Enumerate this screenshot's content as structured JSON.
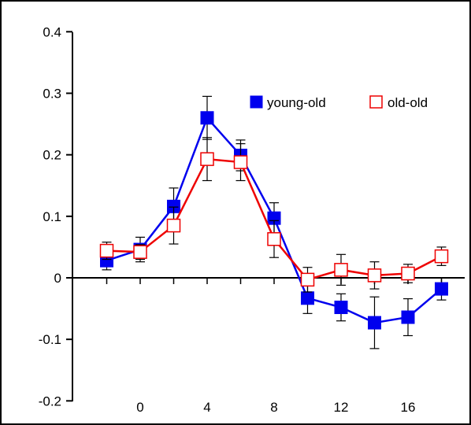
{
  "chart_data": {
    "type": "line",
    "title": "",
    "xlabel": "",
    "ylabel": "",
    "xlim": [
      -4,
      19
    ],
    "ylim": [
      -0.2,
      0.4
    ],
    "x_ticks": [
      {
        "value": 0,
        "label": "0"
      },
      {
        "value": 4,
        "label": "4"
      },
      {
        "value": 8,
        "label": "8"
      },
      {
        "value": 12,
        "label": "12"
      },
      {
        "value": 16,
        "label": "16"
      }
    ],
    "y_ticks": [
      {
        "value": 0.4,
        "label": "0.4"
      },
      {
        "value": 0.3,
        "label": "0.3"
      },
      {
        "value": 0.2,
        "label": "0.2"
      },
      {
        "value": 0.1,
        "label": "0.1"
      },
      {
        "value": 0.0,
        "label": "0"
      },
      {
        "value": -0.1,
        "label": "-0.1"
      },
      {
        "value": -0.2,
        "label": "-0.2"
      }
    ],
    "grid": false,
    "legend_position": "top-right",
    "series": [
      {
        "name": "young-old",
        "color": "#0000ee",
        "marker": "filled-square",
        "x": [
          -2,
          0,
          2,
          4,
          6,
          8,
          10,
          12,
          14,
          16,
          18
        ],
        "y": [
          0.028,
          0.046,
          0.116,
          0.26,
          0.199,
          0.097,
          -0.033,
          -0.048,
          -0.073,
          -0.064,
          -0.018
        ],
        "err": [
          0.015,
          0.02,
          0.03,
          0.035,
          0.025,
          0.025,
          0.025,
          0.022,
          0.042,
          0.03,
          0.018
        ]
      },
      {
        "name": "old-old",
        "color": "#ee0000",
        "marker": "open-square",
        "x": [
          -2,
          0,
          2,
          4,
          6,
          8,
          10,
          12,
          14,
          16,
          18
        ],
        "y": [
          0.044,
          0.042,
          0.085,
          0.193,
          0.188,
          0.063,
          -0.003,
          0.013,
          0.004,
          0.007,
          0.035
        ],
        "err": [
          0.014,
          0.012,
          0.03,
          0.035,
          0.03,
          0.03,
          0.02,
          0.025,
          0.022,
          0.015,
          0.015
        ]
      }
    ]
  }
}
